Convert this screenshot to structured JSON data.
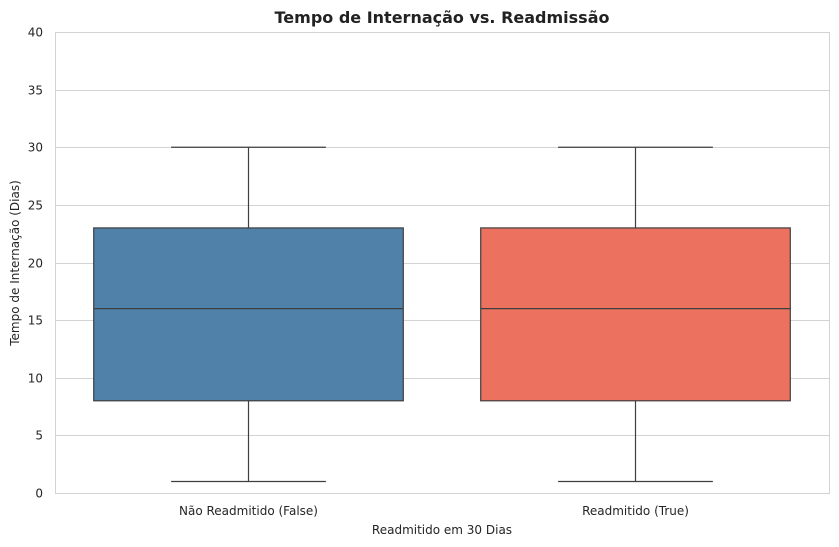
{
  "chart_data": {
    "type": "boxplot",
    "title": "Tempo de Internação vs. Readmissão",
    "xlabel": "Readmitido em 30 Dias",
    "ylabel": "Tempo de Internação (Dias)",
    "ylim": [
      0,
      40
    ],
    "yticks": [
      0,
      5,
      10,
      15,
      20,
      25,
      30,
      35,
      40
    ],
    "grid": "horizontal",
    "categories": [
      "Não Readmitido (False)",
      "Readmitido (True)"
    ],
    "boxes": [
      {
        "category": "Não Readmitido (False)",
        "min": 1,
        "q1": 8,
        "median": 16,
        "q3": 23,
        "max": 30,
        "color": "#4f81a9"
      },
      {
        "category": "Readmitido (True)",
        "min": 1,
        "q1": 8,
        "median": 16,
        "q3": 23,
        "max": 30,
        "color": "#ec715f"
      }
    ]
  }
}
